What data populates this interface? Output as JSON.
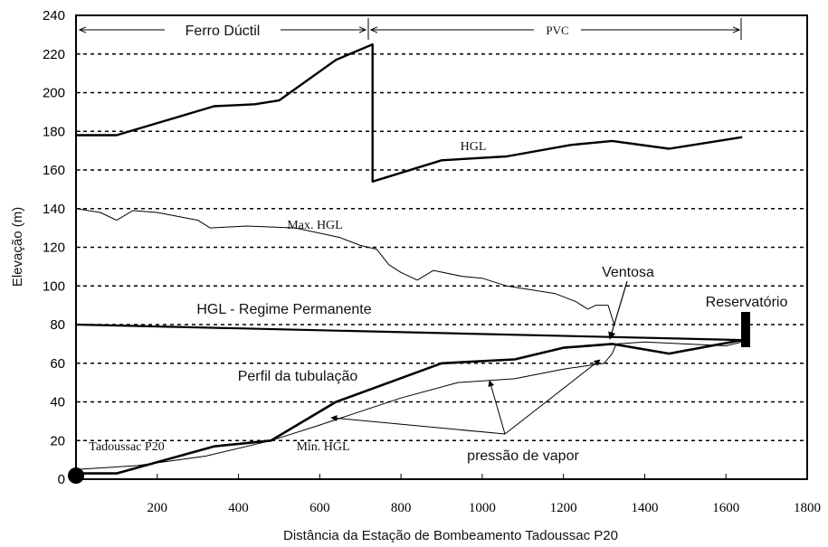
{
  "chart_data": {
    "type": "line",
    "xlabel": "Distância da Estação de Bombeamento Tadoussac P20",
    "ylabel": "Elevação (m)",
    "xlim": [
      0,
      1800
    ],
    "ylim": [
      0,
      240
    ],
    "x_ticks": [
      200,
      400,
      600,
      800,
      1000,
      1200,
      1400,
      1600,
      1800
    ],
    "y_ticks": [
      0,
      20,
      40,
      60,
      80,
      100,
      120,
      140,
      160,
      180,
      200,
      220,
      240
    ],
    "grid": "horizontal dashed",
    "series": [
      {
        "name": "HGL",
        "points": [
          [
            0,
            178
          ],
          [
            100,
            178
          ],
          [
            340,
            193
          ],
          [
            440,
            194
          ],
          [
            500,
            196
          ],
          [
            640,
            217
          ],
          [
            730,
            225
          ],
          [
            730,
            154
          ],
          [
            900,
            165
          ],
          [
            1060,
            167
          ],
          [
            1220,
            173
          ],
          [
            1320,
            175
          ],
          [
            1460,
            171
          ],
          [
            1640,
            177
          ]
        ]
      },
      {
        "name": "Max. HGL",
        "points": [
          [
            0,
            140
          ],
          [
            60,
            138
          ],
          [
            100,
            134
          ],
          [
            140,
            139
          ],
          [
            200,
            138
          ],
          [
            300,
            134
          ],
          [
            330,
            130
          ],
          [
            420,
            131
          ],
          [
            540,
            130
          ],
          [
            650,
            125
          ],
          [
            700,
            121
          ],
          [
            740,
            119
          ],
          [
            770,
            111
          ],
          [
            800,
            107
          ],
          [
            840,
            103
          ],
          [
            880,
            108
          ],
          [
            950,
            105
          ],
          [
            1000,
            104
          ],
          [
            1060,
            100
          ],
          [
            1120,
            98
          ],
          [
            1180,
            96
          ],
          [
            1230,
            92
          ],
          [
            1260,
            88
          ],
          [
            1280,
            90
          ],
          [
            1310,
            90
          ],
          [
            1325,
            80
          ]
        ]
      },
      {
        "name": "HGL - Regime Permanente",
        "points": [
          [
            0,
            80
          ],
          [
            1640,
            72
          ]
        ]
      },
      {
        "name": "Perfil da tubulação",
        "points": [
          [
            0,
            3
          ],
          [
            100,
            3
          ],
          [
            340,
            17
          ],
          [
            480,
            20
          ],
          [
            640,
            40
          ],
          [
            900,
            60
          ],
          [
            1080,
            62
          ],
          [
            1200,
            68
          ],
          [
            1320,
            70
          ],
          [
            1460,
            65
          ],
          [
            1640,
            72
          ]
        ]
      },
      {
        "name": "Min. HGL",
        "points": [
          [
            0,
            5
          ],
          [
            150,
            7
          ],
          [
            320,
            12
          ],
          [
            480,
            20
          ],
          [
            600,
            28
          ],
          [
            800,
            42
          ],
          [
            940,
            50
          ],
          [
            1080,
            52
          ],
          [
            1200,
            57
          ],
          [
            1300,
            60
          ],
          [
            1320,
            65
          ],
          [
            1330,
            70
          ],
          [
            1400,
            71
          ],
          [
            1500,
            70
          ],
          [
            1600,
            69
          ],
          [
            1640,
            71
          ]
        ]
      }
    ],
    "annotations": {
      "ferro_ductil": "Ferro Dúctil",
      "pvc": "PVC",
      "hgl": "HGL",
      "max_hgl": "Max. HGL",
      "regime": "HGL - Regime Permanente",
      "ventosa": "Ventosa",
      "reservatorio": "Reservatório",
      "perfil": "Perfil da tubulação",
      "tadoussac": "Tadoussac P20",
      "min_hgl": "Min. HGL",
      "vapor": "pressão de vapor"
    },
    "ticks_y_labels": [
      "0",
      "20",
      "40",
      "60",
      "80",
      "100",
      "120",
      "140",
      "160",
      "180",
      "200",
      "220",
      "240"
    ],
    "ticks_x_labels": [
      "200",
      "400",
      "600",
      "800",
      "1000",
      "1200",
      "1400",
      "1600",
      "1800"
    ]
  }
}
